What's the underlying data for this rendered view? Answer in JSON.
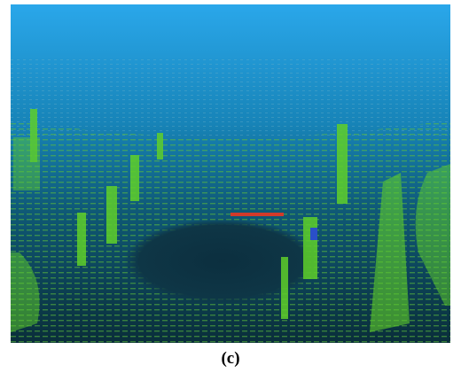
{
  "caption": "(c)"
}
